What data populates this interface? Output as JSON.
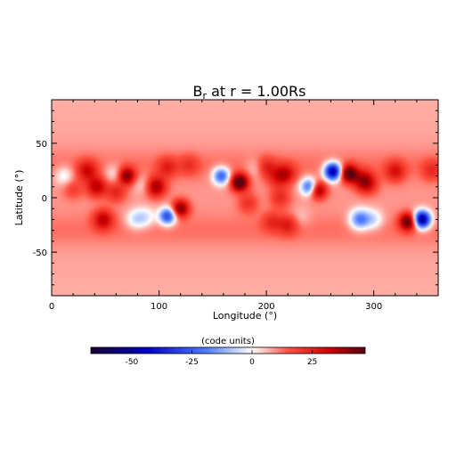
{
  "chart_data": {
    "type": "heatmap",
    "title": "B",
    "title_sub": "r",
    "title_rest": " at r = 1.00Rs",
    "xlabel": "Longitude (°)",
    "ylabel": "Latitude (°)",
    "xlim": [
      0,
      360
    ],
    "ylim": [
      -90,
      90
    ],
    "xticks": [
      0,
      100,
      200,
      300
    ],
    "yticks": [
      -50,
      0,
      50
    ],
    "colorbar": {
      "label": "(code units)",
      "range": [
        -67,
        47
      ],
      "ticks": [
        -50,
        -25,
        0,
        25
      ],
      "colors": [
        "#1a0033",
        "#0000c8",
        "#4f7fff",
        "#ffffff",
        "#ff5040",
        "#d00000",
        "#5a0010"
      ]
    },
    "background_value": 9,
    "features": [
      {
        "lon": 12,
        "lat": 20,
        "value": -12
      },
      {
        "lon": 20,
        "lat": 8,
        "value": 10
      },
      {
        "lon": 33,
        "lat": 25,
        "value": 20
      },
      {
        "lon": 42,
        "lat": 10,
        "value": 25
      },
      {
        "lon": 48,
        "lat": -20,
        "value": 24
      },
      {
        "lon": 58,
        "lat": 22,
        "value": -10
      },
      {
        "lon": 60,
        "lat": 5,
        "value": 15
      },
      {
        "lon": 70,
        "lat": 20,
        "value": 33
      },
      {
        "lon": 78,
        "lat": -20,
        "value": -14
      },
      {
        "lon": 88,
        "lat": -18,
        "value": -12
      },
      {
        "lon": 86,
        "lat": 12,
        "value": -8
      },
      {
        "lon": 97,
        "lat": 10,
        "value": 30
      },
      {
        "lon": 108,
        "lat": 28,
        "value": 14
      },
      {
        "lon": 108,
        "lat": -17,
        "value": -40
      },
      {
        "lon": 120,
        "lat": -10,
        "value": 33
      },
      {
        "lon": 128,
        "lat": 30,
        "value": 10
      },
      {
        "lon": 158,
        "lat": 20,
        "value": -35
      },
      {
        "lon": 175,
        "lat": 14,
        "value": 45
      },
      {
        "lon": 183,
        "lat": -5,
        "value": 12
      },
      {
        "lon": 190,
        "lat": 27,
        "value": -8
      },
      {
        "lon": 200,
        "lat": 28,
        "value": 14
      },
      {
        "lon": 210,
        "lat": 18,
        "value": 12
      },
      {
        "lon": 218,
        "lat": 22,
        "value": 20
      },
      {
        "lon": 213,
        "lat": 0,
        "value": 14
      },
      {
        "lon": 205,
        "lat": -22,
        "value": 12
      },
      {
        "lon": 220,
        "lat": -25,
        "value": 15
      },
      {
        "lon": 232,
        "lat": -18,
        "value": -5
      },
      {
        "lon": 240,
        "lat": 10,
        "value": -35
      },
      {
        "lon": 248,
        "lat": 7,
        "value": 33
      },
      {
        "lon": 262,
        "lat": 24,
        "value": -62
      },
      {
        "lon": 277,
        "lat": 22,
        "value": 40
      },
      {
        "lon": 290,
        "lat": 16,
        "value": 22
      },
      {
        "lon": 295,
        "lat": 12,
        "value": 14
      },
      {
        "lon": 287,
        "lat": -20,
        "value": -30
      },
      {
        "lon": 300,
        "lat": -20,
        "value": -14
      },
      {
        "lon": 320,
        "lat": 24,
        "value": 18
      },
      {
        "lon": 332,
        "lat": -22,
        "value": 38
      },
      {
        "lon": 345,
        "lat": -20,
        "value": -65
      },
      {
        "lon": 354,
        "lat": 25,
        "value": 12
      }
    ]
  }
}
